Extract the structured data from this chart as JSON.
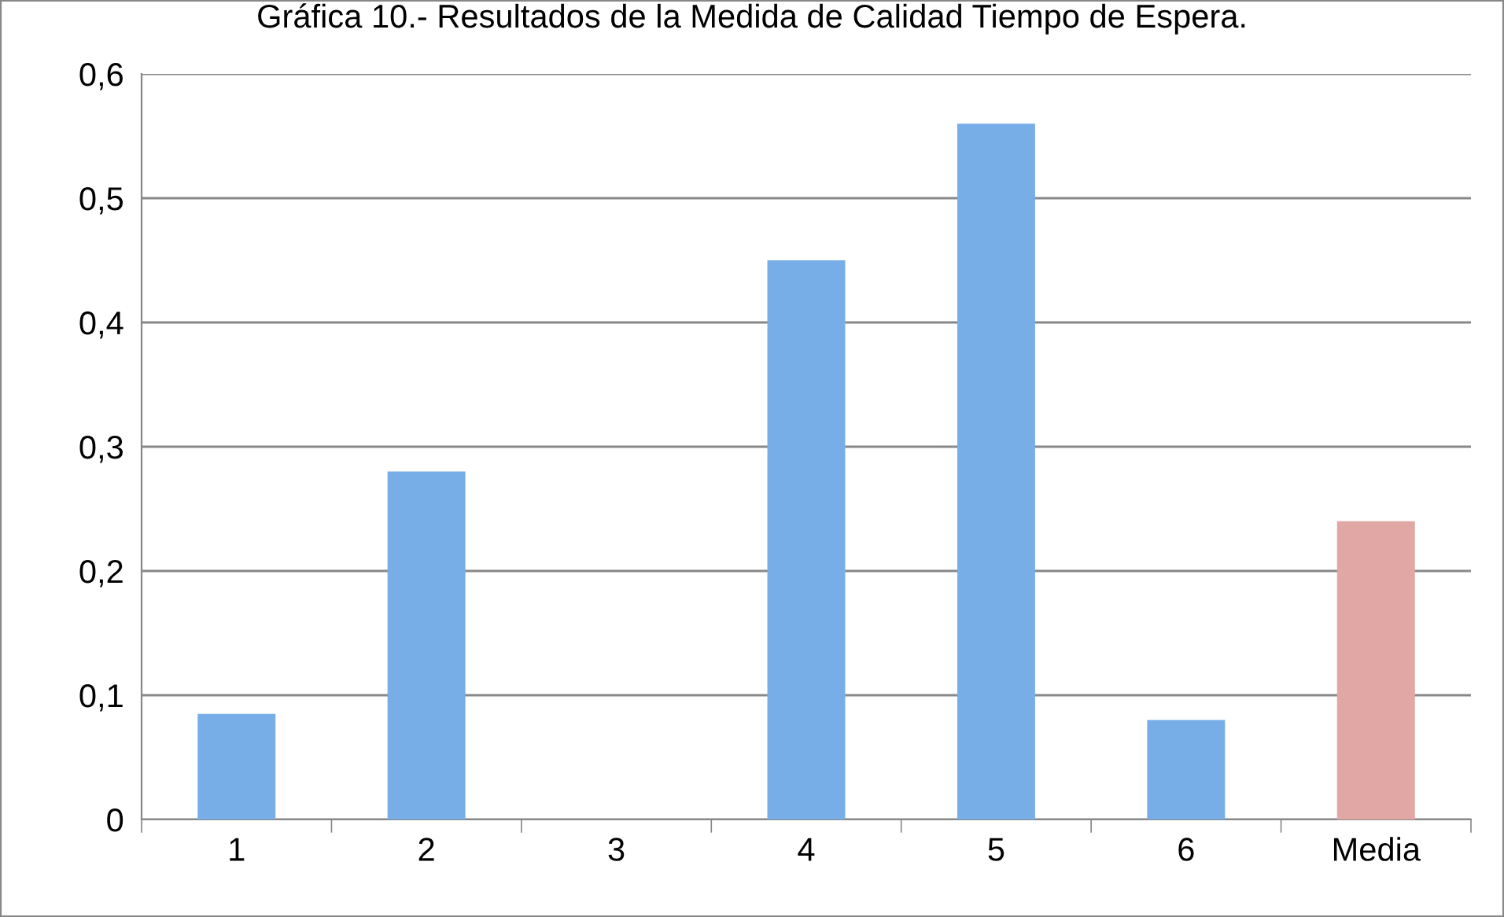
{
  "chart_data": {
    "type": "bar",
    "title": "Gráfica 10.- Resultados de la Medida de Calidad Tiempo de Espera.",
    "categories": [
      "1",
      "2",
      "3",
      "4",
      "5",
      "6",
      "Media"
    ],
    "values": [
      0.085,
      0.28,
      0,
      0.45,
      0.56,
      0.08,
      0.24
    ],
    "colors": [
      "#78aee8",
      "#78aee8",
      "#78aee8",
      "#78aee8",
      "#78aee8",
      "#78aee8",
      "#e0a7a4"
    ],
    "ylim": [
      0,
      0.6
    ],
    "yticks": [
      0,
      {
        "value": 0.1,
        "label": "0,1"
      },
      {
        "value": 0.2,
        "label": "0,2"
      },
      {
        "value": 0.3,
        "label": "0,3"
      },
      {
        "value": 0.4,
        "label": "0,4"
      },
      {
        "value": 0.5,
        "label": "0,5"
      },
      {
        "value": 0.6,
        "label": "0,6"
      }
    ],
    "grid": "y"
  }
}
